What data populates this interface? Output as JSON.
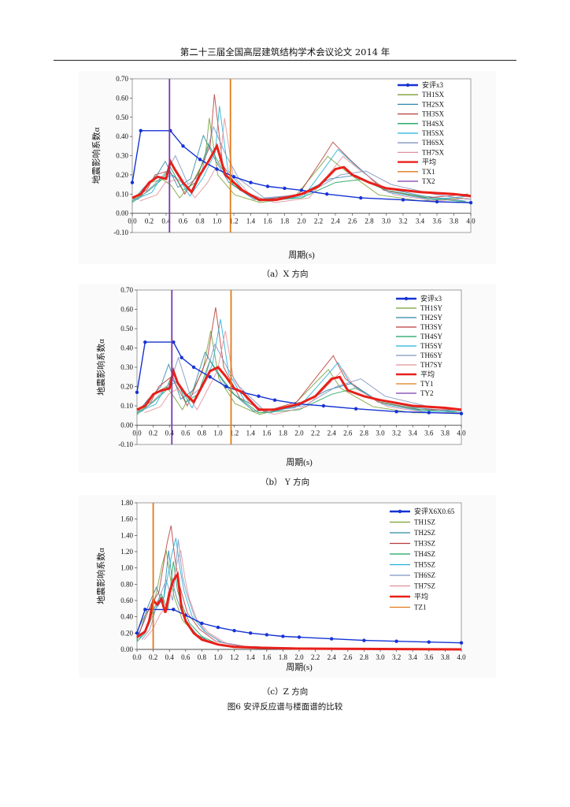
{
  "header": {
    "title": "第二十三届全国高层建筑结构学术会议论文 2014 年"
  },
  "figure_caption": "图6 安评反应谱与楼面谱的比较",
  "chart_data": [
    {
      "type": "line",
      "caption": "（a）X 方向",
      "xlabel": "周期(s)",
      "ylabel": "地震影响系数α",
      "xlim": [
        0,
        4.0
      ],
      "ylim": [
        -0.1,
        0.7
      ],
      "x_ticks": [
        "0.0",
        "0.2",
        "0.4",
        "0.6",
        "0.8",
        "1.0",
        "1.2",
        "1.4",
        "1.6",
        "1.8",
        "2.0",
        "2.2",
        "2.4",
        "2.6",
        "2.8",
        "3.0",
        "3.2",
        "3.4",
        "3.6",
        "3.8",
        "4.0"
      ],
      "y_ticks": [
        "0.70",
        "0.60",
        "0.50",
        "0.40",
        "0.30",
        "0.20",
        "0.10",
        "0.00",
        "-0.10"
      ],
      "legend": [
        "安评x3",
        "TH1SX",
        "TH2SX",
        "TH3SX",
        "TH4SX",
        "TH5SX",
        "TH6SX",
        "TH7SX",
        "平均",
        "TX1",
        "TX2"
      ],
      "colors": [
        "#1533d4",
        "#76a035",
        "#2e86a8",
        "#b83a3a",
        "#1aa05a",
        "#22b0d8",
        "#7f93c0",
        "#e0909a",
        "#e8201a",
        "#e07a1a",
        "#7a3aaa"
      ],
      "design_spectrum": {
        "x": [
          0.0,
          0.1,
          0.45,
          0.6,
          0.8,
          1.0,
          1.2,
          1.4,
          1.6,
          1.8,
          2.0,
          2.3,
          2.7,
          3.2,
          3.6,
          4.0
        ],
        "y": [
          0.16,
          0.43,
          0.43,
          0.35,
          0.28,
          0.23,
          0.19,
          0.16,
          0.14,
          0.13,
          0.12,
          0.1,
          0.08,
          0.07,
          0.06,
          0.055
        ]
      },
      "peaks": [
        {
          "x": [
            0,
            0.2,
            0.3,
            0.45,
            0.55,
            0.65,
            0.8,
            0.95,
            1.0,
            1.1,
            1.3,
            1.6,
            2.0,
            2.3,
            2.4,
            2.6,
            3.0,
            3.5,
            4.0
          ],
          "y": [
            0.08,
            0.12,
            0.2,
            0.22,
            0.18,
            0.1,
            0.2,
            0.35,
            0.62,
            0.25,
            0.12,
            0.07,
            0.1,
            0.3,
            0.37,
            0.28,
            0.12,
            0.08,
            0.1
          ]
        },
        {
          "x": [
            0,
            0.2,
            0.35,
            0.45,
            0.6,
            0.75,
            0.9,
            1.05,
            1.2,
            1.5,
            2.0,
            2.4,
            2.7,
            3.0,
            3.5,
            4.0
          ],
          "y": [
            0.07,
            0.15,
            0.22,
            0.3,
            0.15,
            0.2,
            0.45,
            0.3,
            0.18,
            0.08,
            0.1,
            0.2,
            0.22,
            0.15,
            0.1,
            0.07
          ]
        }
      ],
      "average": {
        "x": [
          0,
          0.1,
          0.2,
          0.3,
          0.4,
          0.45,
          0.5,
          0.6,
          0.7,
          0.8,
          0.9,
          1.0,
          1.1,
          1.2,
          1.3,
          1.5,
          1.7,
          2.0,
          2.2,
          2.4,
          2.5,
          2.6,
          2.8,
          3.0,
          3.4,
          3.8,
          4.0
        ],
        "y": [
          0.08,
          0.1,
          0.16,
          0.19,
          0.18,
          0.27,
          0.23,
          0.16,
          0.11,
          0.2,
          0.27,
          0.35,
          0.2,
          0.16,
          0.12,
          0.07,
          0.07,
          0.1,
          0.14,
          0.23,
          0.24,
          0.2,
          0.16,
          0.13,
          0.11,
          0.1,
          0.09
        ]
      },
      "vlines": [
        {
          "name": "TX1",
          "x": 1.16
        },
        {
          "name": "TX2",
          "x": 0.44
        }
      ]
    },
    {
      "type": "line",
      "caption": "（b） Y 方向",
      "xlabel": "周期(s)",
      "ylabel": "地震影响系数α",
      "xlim": [
        0,
        4.0
      ],
      "ylim": [
        -0.1,
        0.7
      ],
      "x_ticks": [
        "0.0",
        "0.2",
        "0.4",
        "0.6",
        "0.8",
        "1.0",
        "1.2",
        "1.4",
        "1.6",
        "1.8",
        "2.0",
        "2.2",
        "2.4",
        "2.6",
        "2.8",
        "3.0",
        "3.2",
        "3.4",
        "3.6",
        "3.8",
        "4.0"
      ],
      "y_ticks": [
        "0.70",
        "0.60",
        "0.50",
        "0.40",
        "0.30",
        "0.20",
        "0.10",
        "0.00",
        "-0.10"
      ],
      "legend": [
        "安评x3",
        "TH1SY",
        "TH2SY",
        "TH3SY",
        "TH4SY",
        "TH5SY",
        "TH6SY",
        "TH7SY",
        "平均",
        "TY1",
        "TY2"
      ],
      "colors": [
        "#1533d4",
        "#76a035",
        "#2e86a8",
        "#b83a3a",
        "#1aa05a",
        "#22b0d8",
        "#7f93c0",
        "#e0909a",
        "#e8201a",
        "#e07a1a",
        "#7a3aaa"
      ],
      "design_spectrum": {
        "x": [
          0.0,
          0.1,
          0.45,
          0.55,
          0.7,
          0.9,
          1.1,
          1.3,
          1.5,
          1.7,
          2.0,
          2.3,
          2.7,
          3.2,
          3.6,
          4.0
        ],
        "y": [
          0.17,
          0.43,
          0.43,
          0.35,
          0.3,
          0.25,
          0.2,
          0.17,
          0.15,
          0.13,
          0.11,
          0.1,
          0.085,
          0.07,
          0.065,
          0.06
        ]
      },
      "peaks": [
        {
          "x": [
            0,
            0.2,
            0.3,
            0.45,
            0.55,
            0.65,
            0.8,
            0.9,
            1.0,
            1.1,
            1.3,
            1.6,
            2.0,
            2.3,
            2.45,
            2.6,
            3.0,
            3.5,
            4.0
          ],
          "y": [
            0.08,
            0.12,
            0.2,
            0.25,
            0.18,
            0.1,
            0.25,
            0.35,
            0.61,
            0.3,
            0.14,
            0.07,
            0.12,
            0.28,
            0.36,
            0.24,
            0.12,
            0.08,
            0.08
          ]
        },
        {
          "x": [
            0,
            0.2,
            0.35,
            0.45,
            0.6,
            0.75,
            0.9,
            1.05,
            1.2,
            1.5,
            2.0,
            2.4,
            2.7,
            3.0,
            3.5,
            4.0
          ],
          "y": [
            0.07,
            0.15,
            0.22,
            0.35,
            0.15,
            0.2,
            0.42,
            0.3,
            0.2,
            0.08,
            0.1,
            0.2,
            0.24,
            0.15,
            0.1,
            0.08
          ]
        }
      ],
      "average": {
        "x": [
          0,
          0.1,
          0.2,
          0.3,
          0.4,
          0.45,
          0.5,
          0.6,
          0.7,
          0.8,
          0.9,
          1.0,
          1.1,
          1.2,
          1.3,
          1.5,
          1.7,
          2.0,
          2.2,
          2.4,
          2.5,
          2.6,
          2.8,
          3.0,
          3.4,
          3.8,
          4.0
        ],
        "y": [
          0.08,
          0.1,
          0.16,
          0.18,
          0.19,
          0.28,
          0.22,
          0.16,
          0.12,
          0.2,
          0.28,
          0.3,
          0.25,
          0.19,
          0.17,
          0.08,
          0.08,
          0.11,
          0.15,
          0.24,
          0.25,
          0.18,
          0.15,
          0.13,
          0.1,
          0.09,
          0.08
        ]
      },
      "vlines": [
        {
          "name": "TY1",
          "x": 1.16
        },
        {
          "name": "TY2",
          "x": 0.43
        }
      ]
    },
    {
      "type": "line",
      "caption": "（c）Z 方向",
      "xlabel": "周期(s)",
      "ylabel": "地震影响系数α",
      "xlim": [
        0,
        4.0
      ],
      "ylim": [
        0,
        1.8
      ],
      "x_ticks": [
        "0.0",
        "0.2",
        "0.4",
        "0.6",
        "0.8",
        "1.0",
        "1.2",
        "1.4",
        "1.6",
        "1.8",
        "2.0",
        "2.2",
        "2.4",
        "2.6",
        "2.8",
        "3.0",
        "3.2",
        "3.4",
        "3.6",
        "3.8",
        "4.0"
      ],
      "y_ticks": [
        "1.80",
        "1.60",
        "1.40",
        "1.20",
        "1.00",
        "0.80",
        "0.60",
        "0.40",
        "0.20",
        "0.00"
      ],
      "legend": [
        "安评X6X0.65",
        "TH1SZ",
        "TH2SZ",
        "TH3SZ",
        "TH4SZ",
        "TH5SZ",
        "TH6SZ",
        "TH7SZ",
        "平均",
        "TZ1"
      ],
      "colors": [
        "#1533d4",
        "#76a035",
        "#2e86a8",
        "#b83a3a",
        "#1aa05a",
        "#22b0d8",
        "#7f93c0",
        "#e0909a",
        "#e8201a",
        "#e07a1a"
      ],
      "design_spectrum": {
        "x": [
          0.0,
          0.1,
          0.45,
          0.6,
          0.8,
          1.0,
          1.2,
          1.4,
          1.6,
          1.8,
          2.0,
          2.4,
          2.8,
          3.2,
          3.6,
          4.0
        ],
        "y": [
          0.2,
          0.49,
          0.49,
          0.42,
          0.32,
          0.27,
          0.23,
          0.2,
          0.18,
          0.16,
          0.15,
          0.13,
          0.11,
          0.1,
          0.09,
          0.08
        ]
      },
      "peaks": [
        {
          "x": [
            0,
            0.1,
            0.2,
            0.3,
            0.4,
            0.45,
            0.5,
            0.55,
            0.65,
            0.8,
            1.0,
            1.3,
            1.8,
            2.5,
            4.0
          ],
          "y": [
            0.15,
            0.3,
            0.55,
            0.7,
            1.3,
            1.52,
            1.1,
            0.8,
            0.45,
            0.25,
            0.1,
            0.04,
            0.02,
            0.01,
            0.0
          ]
        },
        {
          "x": [
            0,
            0.1,
            0.2,
            0.3,
            0.38,
            0.45,
            0.5,
            0.55,
            0.65,
            0.8,
            1.0,
            1.3,
            1.8,
            2.5,
            4.0
          ],
          "y": [
            0.12,
            0.25,
            0.6,
            0.85,
            0.6,
            1.35,
            0.9,
            0.7,
            0.4,
            0.2,
            0.08,
            0.03,
            0.02,
            0.01,
            0.0
          ]
        }
      ],
      "average": {
        "x": [
          0,
          0.1,
          0.15,
          0.2,
          0.25,
          0.3,
          0.35,
          0.4,
          0.45,
          0.5,
          0.55,
          0.6,
          0.7,
          0.8,
          1.0,
          1.2,
          1.5,
          2.0,
          3.0,
          4.0
        ],
        "y": [
          0.15,
          0.22,
          0.35,
          0.6,
          0.55,
          0.62,
          0.45,
          0.7,
          0.85,
          0.92,
          0.5,
          0.35,
          0.2,
          0.12,
          0.06,
          0.03,
          0.02,
          0.01,
          0.005,
          0.0
        ]
      },
      "vlines": [
        {
          "name": "TZ1",
          "x": 0.2
        }
      ]
    }
  ]
}
